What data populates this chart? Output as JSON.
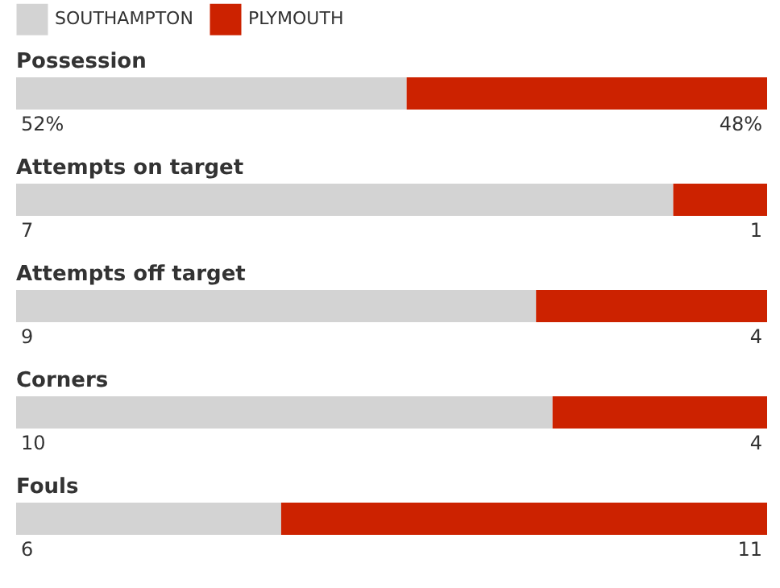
{
  "chart_data": [
    {
      "type": "bar",
      "orientation": "horizontal",
      "stacked": true,
      "title": "Possession",
      "categories": [
        null
      ],
      "xlim": [
        0,
        100
      ],
      "legend": "top left",
      "tick_labels": false,
      "series": [
        {
          "name": "SOUTHAMPTON",
          "color": "#d3d3d3",
          "values": [
            52
          ],
          "value_labels": [
            "52%"
          ]
        },
        {
          "name": "PLYMOUTH",
          "color": "#cc2200",
          "values": [
            48
          ],
          "value_labels": [
            "48%"
          ]
        }
      ]
    },
    {
      "type": "bar",
      "orientation": "horizontal",
      "stacked": true,
      "title": "Attempts on target",
      "categories": [
        null
      ],
      "xlim": [
        0,
        8
      ],
      "tick_labels": false,
      "data_labels": true,
      "series": [
        {
          "color": "#d3d3d3",
          "values": [
            7
          ]
        },
        {
          "color": "#cc2200",
          "values": [
            1
          ]
        }
      ]
    },
    {
      "type": "bar",
      "orientation": "horizontal",
      "stacked": true,
      "title": "Attempts off target",
      "categories": [
        null
      ],
      "xlim": [
        0,
        13
      ],
      "tick_labels": false,
      "data_labels": true,
      "series": [
        {
          "color": "#d3d3d3",
          "values": [
            9
          ]
        },
        {
          "color": "#cc2200",
          "values": [
            4
          ]
        }
      ]
    },
    {
      "type": "bar",
      "orientation": "horizontal",
      "stacked": true,
      "title": "Corners",
      "categories": [
        null
      ],
      "xlim": [
        0,
        14
      ],
      "tick_labels": false,
      "data_labels": true,
      "series": [
        {
          "color": "#d3d3d3",
          "values": [
            10
          ]
        },
        {
          "color": "#cc2200",
          "values": [
            4
          ]
        }
      ]
    },
    {
      "type": "bar",
      "orientation": "horizontal",
      "stacked": true,
      "title": "Fouls",
      "categories": [
        null
      ],
      "xlim": [
        0,
        17
      ],
      "tick_labels": false,
      "data_labels": true,
      "series": [
        {
          "color": "#d3d3d3",
          "values": [
            6
          ]
        },
        {
          "color": "#cc2200",
          "values": [
            11
          ]
        }
      ]
    }
  ]
}
